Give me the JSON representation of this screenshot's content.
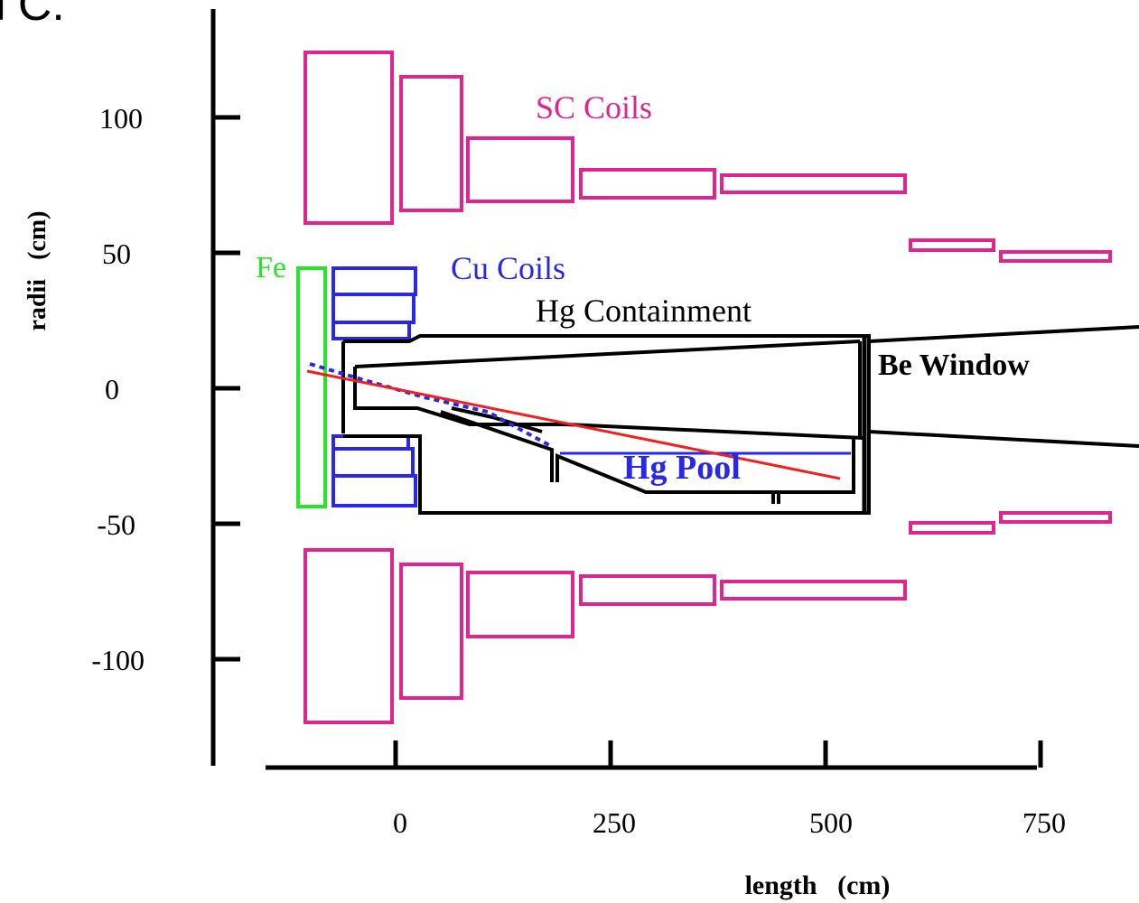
{
  "fragment": "ГС.",
  "axes": {
    "y_title": "radii   (cm)",
    "x_title": "length   (cm)",
    "y_ticks": [
      "100",
      "50",
      "0",
      "-50",
      "-100"
    ],
    "x_ticks": [
      "0",
      "250",
      "500",
      "750"
    ]
  },
  "labels": {
    "sc_coils": "SC Coils",
    "fe": "Fe",
    "cu_coils": "Cu Coils",
    "hg_containment": "Hg Containment",
    "be_window": "Be Window",
    "hg_pool": "Hg Pool"
  },
  "colors": {
    "sc_coils": "#e0258f",
    "fe": "#27e627",
    "cu_coils": "#2828e6",
    "hg_pool": "#2828e6",
    "proton_beam": "#f02020",
    "structure": "#000000"
  }
}
